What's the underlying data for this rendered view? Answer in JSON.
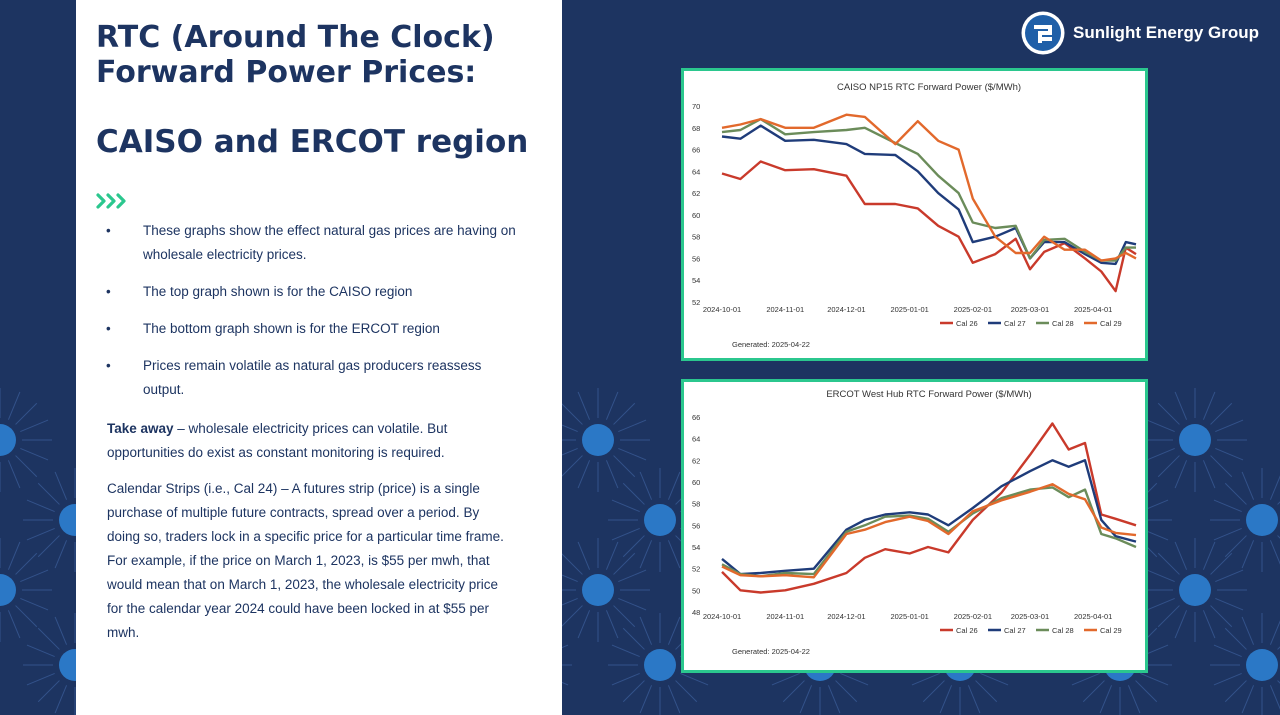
{
  "slide": {
    "title": "RTC (Around The Clock) Forward Power Prices:",
    "subtitle": "CAISO and ERCOT region",
    "bullet_glyph": "•",
    "bullets": [
      "These graphs show the effect natural gas prices are having on wholesale electricity prices.",
      "The top graph shown is for the CAISO region",
      "The bottom graph shown is for the ERCOT region",
      "Prices remain volatile as natural gas producers reassess output."
    ],
    "takeaway": {
      "label": "Take away",
      "text": " – wholesale electricity prices can volatile. But opportunities do exist as constant monitoring is required."
    },
    "calendar_strips": "Calendar Strips (i.e., Cal 24) – A futures strip (price) is a single purchase of multiple future contracts, spread over a period. By doing so, traders lock in a specific price for a particular time frame.  For example, if the price on March 1, 2023, is $55 per mwh, that would mean that on March 1, 2023, the wholesale electricity price for the calendar year 2024 could have been locked in at $55 per mwh."
  },
  "brand": {
    "name": "Sunlight Energy Group",
    "logo_icon": "sunlight-logo-icon"
  },
  "colors": {
    "navy": "#1d3461",
    "chart_border": "#2bc78e",
    "chevron": "#2bc78e",
    "cal26": "#c93a2b",
    "cal27": "#1f3c7a",
    "cal28": "#6b8c5a",
    "cal29": "#e2692c"
  },
  "chart_data": [
    {
      "type": "line",
      "title": "CAISO NP15 RTC Forward Power ($/MWh)",
      "footnote": "Generated: 2025-04-22",
      "x_ticks": [
        "2024-10-01",
        "2024-11-01",
        "2024-12-01",
        "2025-01-01",
        "2025-02-01",
        "2025-03-01",
        "2025-04-01"
      ],
      "x_range": [
        "2024-10-01",
        "2025-04-22"
      ],
      "ylim": [
        52,
        70
      ],
      "y_ticks": [
        52,
        54,
        56,
        58,
        60,
        62,
        64,
        66,
        68,
        70
      ],
      "legend_position": "bottom-right",
      "grid": false,
      "series": [
        {
          "name": "Cal 26",
          "points": [
            [
              "2024-10-01",
              63.8
            ],
            [
              "2024-10-10",
              63.3
            ],
            [
              "2024-10-20",
              64.9
            ],
            [
              "2024-11-01",
              64.1
            ],
            [
              "2024-11-15",
              64.2
            ],
            [
              "2024-12-01",
              63.6
            ],
            [
              "2024-12-10",
              61.0
            ],
            [
              "2024-12-25",
              61.0
            ],
            [
              "2025-01-05",
              60.6
            ],
            [
              "2025-01-15",
              59.0
            ],
            [
              "2025-01-25",
              58.0
            ],
            [
              "2025-02-01",
              55.6
            ],
            [
              "2025-02-12",
              56.4
            ],
            [
              "2025-02-22",
              57.8
            ],
            [
              "2025-03-01",
              55.0
            ],
            [
              "2025-03-08",
              56.6
            ],
            [
              "2025-03-18",
              57.4
            ],
            [
              "2025-03-28",
              56.0
            ],
            [
              "2025-04-05",
              54.8
            ],
            [
              "2025-04-12",
              53.0
            ],
            [
              "2025-04-17",
              57.0
            ],
            [
              "2025-04-22",
              56.4
            ]
          ]
        },
        {
          "name": "Cal 27",
          "points": [
            [
              "2024-10-01",
              67.2
            ],
            [
              "2024-10-10",
              67.0
            ],
            [
              "2024-10-20",
              68.2
            ],
            [
              "2024-11-01",
              66.8
            ],
            [
              "2024-11-15",
              66.9
            ],
            [
              "2024-12-01",
              66.5
            ],
            [
              "2024-12-10",
              65.6
            ],
            [
              "2024-12-25",
              65.5
            ],
            [
              "2025-01-05",
              64.0
            ],
            [
              "2025-01-15",
              62.0
            ],
            [
              "2025-01-25",
              60.5
            ],
            [
              "2025-02-01",
              57.5
            ],
            [
              "2025-02-12",
              58.0
            ],
            [
              "2025-02-22",
              58.8
            ],
            [
              "2025-03-01",
              56.0
            ],
            [
              "2025-03-08",
              57.5
            ],
            [
              "2025-03-18",
              57.5
            ],
            [
              "2025-03-28",
              56.4
            ],
            [
              "2025-04-05",
              55.6
            ],
            [
              "2025-04-12",
              55.5
            ],
            [
              "2025-04-17",
              57.5
            ],
            [
              "2025-04-22",
              57.3
            ]
          ]
        },
        {
          "name": "Cal 28",
          "points": [
            [
              "2024-10-01",
              67.6
            ],
            [
              "2024-10-10",
              67.8
            ],
            [
              "2024-10-20",
              68.8
            ],
            [
              "2024-11-01",
              67.4
            ],
            [
              "2024-11-15",
              67.6
            ],
            [
              "2024-12-01",
              67.8
            ],
            [
              "2024-12-10",
              68.0
            ],
            [
              "2024-12-25",
              66.6
            ],
            [
              "2025-01-05",
              65.6
            ],
            [
              "2025-01-15",
              63.6
            ],
            [
              "2025-01-25",
              62.0
            ],
            [
              "2025-02-01",
              59.3
            ],
            [
              "2025-02-12",
              58.8
            ],
            [
              "2025-02-22",
              59.0
            ],
            [
              "2025-03-01",
              56.0
            ],
            [
              "2025-03-08",
              57.7
            ],
            [
              "2025-03-18",
              57.8
            ],
            [
              "2025-03-28",
              56.6
            ],
            [
              "2025-04-05",
              55.8
            ],
            [
              "2025-04-12",
              55.8
            ],
            [
              "2025-04-17",
              57.0
            ],
            [
              "2025-04-22",
              57.0
            ]
          ]
        },
        {
          "name": "Cal 29",
          "points": [
            [
              "2024-10-01",
              68.0
            ],
            [
              "2024-10-10",
              68.3
            ],
            [
              "2024-10-20",
              68.8
            ],
            [
              "2024-11-01",
              68.0
            ],
            [
              "2024-11-15",
              68.0
            ],
            [
              "2024-12-01",
              69.2
            ],
            [
              "2024-12-10",
              69.0
            ],
            [
              "2024-12-25",
              66.5
            ],
            [
              "2025-01-05",
              68.6
            ],
            [
              "2025-01-15",
              66.8
            ],
            [
              "2025-01-25",
              66.0
            ],
            [
              "2025-02-01",
              61.5
            ],
            [
              "2025-02-12",
              58.0
            ],
            [
              "2025-02-22",
              56.5
            ],
            [
              "2025-03-01",
              56.5
            ],
            [
              "2025-03-08",
              58.0
            ],
            [
              "2025-03-18",
              56.8
            ],
            [
              "2025-03-28",
              56.8
            ],
            [
              "2025-04-05",
              55.8
            ],
            [
              "2025-04-12",
              56.0
            ],
            [
              "2025-04-17",
              56.5
            ],
            [
              "2025-04-22",
              56.0
            ]
          ]
        }
      ]
    },
    {
      "type": "line",
      "title": "ERCOT West Hub RTC Forward Power ($/MWh)",
      "footnote": "Generated: 2025-04-22",
      "x_ticks": [
        "2024-10-01",
        "2024-11-01",
        "2024-12-01",
        "2025-01-01",
        "2025-02-01",
        "2025-03-01",
        "2025-04-01"
      ],
      "x_range": [
        "2024-10-01",
        "2025-04-22"
      ],
      "ylim": [
        48,
        66
      ],
      "y_ticks": [
        48,
        50,
        52,
        54,
        56,
        58,
        60,
        62,
        64,
        66
      ],
      "legend_position": "bottom-right",
      "grid": false,
      "series": [
        {
          "name": "Cal 26",
          "points": [
            [
              "2024-10-01",
              51.7
            ],
            [
              "2024-10-10",
              50.0
            ],
            [
              "2024-10-20",
              49.8
            ],
            [
              "2024-11-01",
              50.0
            ],
            [
              "2024-11-15",
              50.6
            ],
            [
              "2024-12-01",
              51.6
            ],
            [
              "2024-12-10",
              53.0
            ],
            [
              "2024-12-20",
              53.8
            ],
            [
              "2025-01-01",
              53.4
            ],
            [
              "2025-01-10",
              54.0
            ],
            [
              "2025-01-20",
              53.5
            ],
            [
              "2025-02-01",
              56.5
            ],
            [
              "2025-02-15",
              59.0
            ],
            [
              "2025-03-01",
              62.5
            ],
            [
              "2025-03-12",
              65.4
            ],
            [
              "2025-03-20",
              63.0
            ],
            [
              "2025-03-28",
              63.6
            ],
            [
              "2025-04-05",
              57.0
            ],
            [
              "2025-04-12",
              56.6
            ],
            [
              "2025-04-22",
              56.0
            ]
          ]
        },
        {
          "name": "Cal 27",
          "points": [
            [
              "2024-10-01",
              52.9
            ],
            [
              "2024-10-10",
              51.5
            ],
            [
              "2024-10-20",
              51.6
            ],
            [
              "2024-11-01",
              51.8
            ],
            [
              "2024-11-15",
              52.0
            ],
            [
              "2024-12-01",
              55.6
            ],
            [
              "2024-12-10",
              56.5
            ],
            [
              "2024-12-20",
              57.0
            ],
            [
              "2025-01-01",
              57.2
            ],
            [
              "2025-01-10",
              57.0
            ],
            [
              "2025-01-20",
              56.0
            ],
            [
              "2025-02-01",
              57.6
            ],
            [
              "2025-02-15",
              59.6
            ],
            [
              "2025-03-01",
              61.0
            ],
            [
              "2025-03-12",
              62.0
            ],
            [
              "2025-03-20",
              61.4
            ],
            [
              "2025-03-28",
              62.0
            ],
            [
              "2025-04-05",
              56.5
            ],
            [
              "2025-04-12",
              55.0
            ],
            [
              "2025-04-22",
              54.5
            ]
          ]
        },
        {
          "name": "Cal 28",
          "points": [
            [
              "2024-10-01",
              52.4
            ],
            [
              "2024-10-10",
              51.5
            ],
            [
              "2024-10-20",
              51.3
            ],
            [
              "2024-11-01",
              51.6
            ],
            [
              "2024-11-15",
              51.5
            ],
            [
              "2024-12-01",
              55.4
            ],
            [
              "2024-12-10",
              56.0
            ],
            [
              "2024-12-20",
              56.8
            ],
            [
              "2025-01-01",
              56.9
            ],
            [
              "2025-01-10",
              56.6
            ],
            [
              "2025-01-20",
              55.4
            ],
            [
              "2025-02-01",
              57.1
            ],
            [
              "2025-02-15",
              58.5
            ],
            [
              "2025-03-01",
              59.3
            ],
            [
              "2025-03-12",
              59.5
            ],
            [
              "2025-03-20",
              58.6
            ],
            [
              "2025-03-28",
              59.3
            ],
            [
              "2025-04-05",
              55.2
            ],
            [
              "2025-04-12",
              54.8
            ],
            [
              "2025-04-22",
              54.0
            ]
          ]
        },
        {
          "name": "Cal 29",
          "points": [
            [
              "2024-10-01",
              52.2
            ],
            [
              "2024-10-10",
              51.4
            ],
            [
              "2024-10-20",
              51.3
            ],
            [
              "2024-11-01",
              51.4
            ],
            [
              "2024-11-15",
              51.2
            ],
            [
              "2024-12-01",
              55.2
            ],
            [
              "2024-12-10",
              55.6
            ],
            [
              "2024-12-20",
              56.3
            ],
            [
              "2025-01-01",
              56.8
            ],
            [
              "2025-01-10",
              56.4
            ],
            [
              "2025-01-20",
              55.2
            ],
            [
              "2025-02-01",
              57.3
            ],
            [
              "2025-02-15",
              58.3
            ],
            [
              "2025-03-01",
              59.1
            ],
            [
              "2025-03-12",
              59.8
            ],
            [
              "2025-03-20",
              58.9
            ],
            [
              "2025-03-28",
              58.4
            ],
            [
              "2025-04-05",
              55.8
            ],
            [
              "2025-04-12",
              55.3
            ],
            [
              "2025-04-22",
              55.1
            ]
          ]
        }
      ]
    }
  ]
}
